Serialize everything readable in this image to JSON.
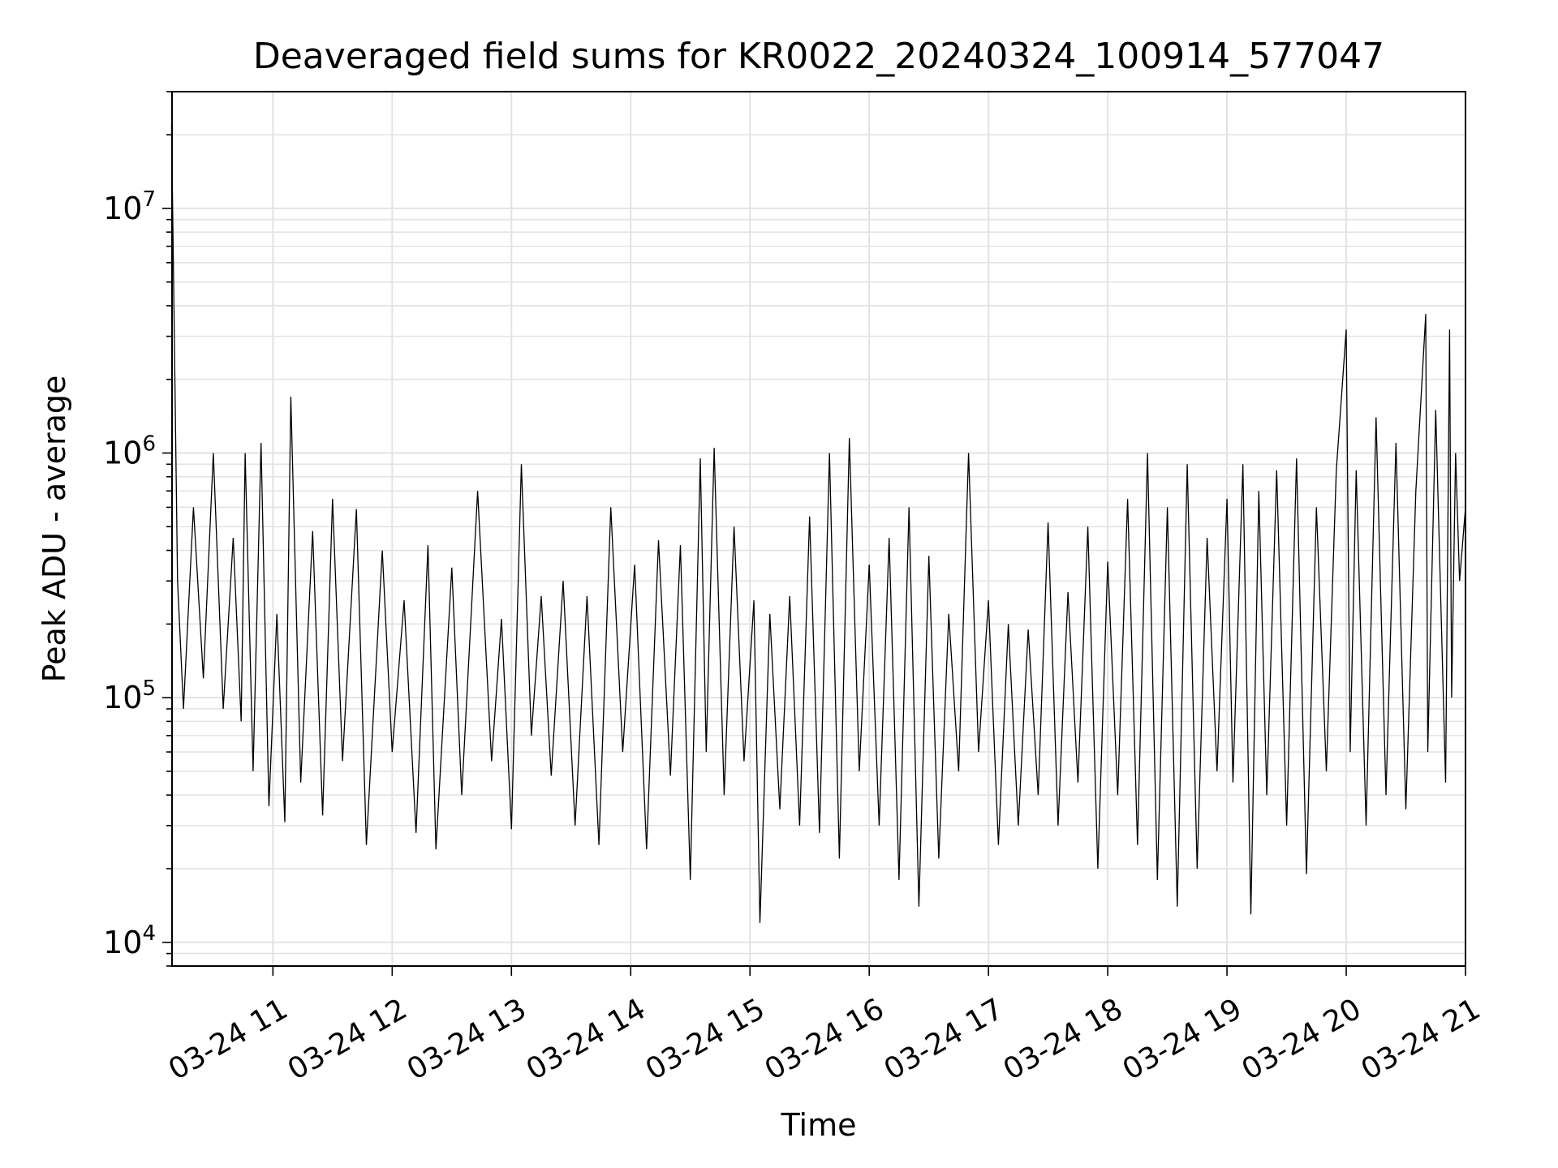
{
  "chart_data": {
    "type": "line",
    "title": "Deaveraged field sums for KR0022_20240324_100914_577047",
    "xlabel": "Time",
    "ylabel": "Peak ADU - average",
    "x_range": [
      "2024-03-24 10:09:14",
      "2024-03-24 21:00:00"
    ],
    "x_ticks": [
      {
        "label": "03-24 11",
        "time": "2024-03-24 11:00"
      },
      {
        "label": "03-24 12",
        "time": "2024-03-24 12:00"
      },
      {
        "label": "03-24 13",
        "time": "2024-03-24 13:00"
      },
      {
        "label": "03-24 14",
        "time": "2024-03-24 14:00"
      },
      {
        "label": "03-24 15",
        "time": "2024-03-24 15:00"
      },
      {
        "label": "03-24 16",
        "time": "2024-03-24 16:00"
      },
      {
        "label": "03-24 17",
        "time": "2024-03-24 17:00"
      },
      {
        "label": "03-24 18",
        "time": "2024-03-24 18:00"
      },
      {
        "label": "03-24 19",
        "time": "2024-03-24 19:00"
      },
      {
        "label": "03-24 20",
        "time": "2024-03-24 20:00"
      },
      {
        "label": "03-24 21",
        "time": "2024-03-24 21:00"
      }
    ],
    "y_scale": "log",
    "ylim": [
      8000,
      30000000
    ],
    "y_ticks": [
      {
        "base": "10",
        "exp": "4",
        "value": 10000
      },
      {
        "base": "10",
        "exp": "5",
        "value": 100000
      },
      {
        "base": "10",
        "exp": "6",
        "value": 1000000
      },
      {
        "base": "10",
        "exp": "7",
        "value": 10000000
      }
    ],
    "grid": true,
    "line_color": "#000000",
    "series": [
      {
        "points": [
          [
            "2024-03-24 10:09",
            22000000
          ],
          [
            "2024-03-24 10:12",
            300000
          ],
          [
            "2024-03-24 10:15",
            90000
          ],
          [
            "2024-03-24 10:20",
            600000
          ],
          [
            "2024-03-24 10:25",
            120000
          ],
          [
            "2024-03-24 10:30",
            1000000
          ],
          [
            "2024-03-24 10:35",
            90000
          ],
          [
            "2024-03-24 10:40",
            450000
          ],
          [
            "2024-03-24 10:44",
            80000
          ],
          [
            "2024-03-24 10:46",
            1000000
          ],
          [
            "2024-03-24 10:50",
            50000
          ],
          [
            "2024-03-24 10:54",
            1100000
          ],
          [
            "2024-03-24 10:58",
            36000
          ],
          [
            "2024-03-24 11:02",
            220000
          ],
          [
            "2024-03-24 11:06",
            31000
          ],
          [
            "2024-03-24 11:09",
            1700000
          ],
          [
            "2024-03-24 11:14",
            45000
          ],
          [
            "2024-03-24 11:20",
            480000
          ],
          [
            "2024-03-24 11:25",
            33000
          ],
          [
            "2024-03-24 11:30",
            650000
          ],
          [
            "2024-03-24 11:35",
            55000
          ],
          [
            "2024-03-24 11:42",
            590000
          ],
          [
            "2024-03-24 11:47",
            25000
          ],
          [
            "2024-03-24 11:55",
            400000
          ],
          [
            "2024-03-24 12:00",
            60000
          ],
          [
            "2024-03-24 12:06",
            250000
          ],
          [
            "2024-03-24 12:12",
            28000
          ],
          [
            "2024-03-24 12:18",
            420000
          ],
          [
            "2024-03-24 12:22",
            24000
          ],
          [
            "2024-03-24 12:30",
            340000
          ],
          [
            "2024-03-24 12:35",
            40000
          ],
          [
            "2024-03-24 12:43",
            700000
          ],
          [
            "2024-03-24 12:50",
            55000
          ],
          [
            "2024-03-24 12:55",
            210000
          ],
          [
            "2024-03-24 13:00",
            29000
          ],
          [
            "2024-03-24 13:05",
            900000
          ],
          [
            "2024-03-24 13:10",
            70000
          ],
          [
            "2024-03-24 13:15",
            260000
          ],
          [
            "2024-03-24 13:20",
            48000
          ],
          [
            "2024-03-24 13:26",
            300000
          ],
          [
            "2024-03-24 13:32",
            30000
          ],
          [
            "2024-03-24 13:38",
            260000
          ],
          [
            "2024-03-24 13:44",
            25000
          ],
          [
            "2024-03-24 13:50",
            600000
          ],
          [
            "2024-03-24 13:56",
            60000
          ],
          [
            "2024-03-24 14:02",
            350000
          ],
          [
            "2024-03-24 14:08",
            24000
          ],
          [
            "2024-03-24 14:14",
            440000
          ],
          [
            "2024-03-24 14:20",
            48000
          ],
          [
            "2024-03-24 14:25",
            420000
          ],
          [
            "2024-03-24 14:30",
            18000
          ],
          [
            "2024-03-24 14:35",
            950000
          ],
          [
            "2024-03-24 14:38",
            60000
          ],
          [
            "2024-03-24 14:42",
            1050000
          ],
          [
            "2024-03-24 14:47",
            40000
          ],
          [
            "2024-03-24 14:52",
            500000
          ],
          [
            "2024-03-24 14:57",
            55000
          ],
          [
            "2024-03-24 15:02",
            250000
          ],
          [
            "2024-03-24 15:05",
            12000
          ],
          [
            "2024-03-24 15:10",
            220000
          ],
          [
            "2024-03-24 15:15",
            35000
          ],
          [
            "2024-03-24 15:20",
            260000
          ],
          [
            "2024-03-24 15:25",
            30000
          ],
          [
            "2024-03-24 15:30",
            550000
          ],
          [
            "2024-03-24 15:35",
            28000
          ],
          [
            "2024-03-24 15:40",
            1000000
          ],
          [
            "2024-03-24 15:45",
            22000
          ],
          [
            "2024-03-24 15:50",
            1150000
          ],
          [
            "2024-03-24 15:55",
            50000
          ],
          [
            "2024-03-24 16:00",
            350000
          ],
          [
            "2024-03-24 16:05",
            30000
          ],
          [
            "2024-03-24 16:10",
            450000
          ],
          [
            "2024-03-24 16:15",
            18000
          ],
          [
            "2024-03-24 16:20",
            600000
          ],
          [
            "2024-03-24 16:25",
            14000
          ],
          [
            "2024-03-24 16:30",
            380000
          ],
          [
            "2024-03-24 16:35",
            22000
          ],
          [
            "2024-03-24 16:40",
            220000
          ],
          [
            "2024-03-24 16:45",
            50000
          ],
          [
            "2024-03-24 16:50",
            1000000
          ],
          [
            "2024-03-24 16:55",
            60000
          ],
          [
            "2024-03-24 17:00",
            250000
          ],
          [
            "2024-03-24 17:05",
            25000
          ],
          [
            "2024-03-24 17:10",
            200000
          ],
          [
            "2024-03-24 17:15",
            30000
          ],
          [
            "2024-03-24 17:20",
            190000
          ],
          [
            "2024-03-24 17:25",
            40000
          ],
          [
            "2024-03-24 17:30",
            520000
          ],
          [
            "2024-03-24 17:35",
            30000
          ],
          [
            "2024-03-24 17:40",
            270000
          ],
          [
            "2024-03-24 17:45",
            45000
          ],
          [
            "2024-03-24 17:50",
            500000
          ],
          [
            "2024-03-24 17:55",
            20000
          ],
          [
            "2024-03-24 18:00",
            360000
          ],
          [
            "2024-03-24 18:05",
            40000
          ],
          [
            "2024-03-24 18:10",
            650000
          ],
          [
            "2024-03-24 18:15",
            25000
          ],
          [
            "2024-03-24 18:20",
            1000000
          ],
          [
            "2024-03-24 18:25",
            18000
          ],
          [
            "2024-03-24 18:30",
            600000
          ],
          [
            "2024-03-24 18:35",
            14000
          ],
          [
            "2024-03-24 18:40",
            900000
          ],
          [
            "2024-03-24 18:45",
            20000
          ],
          [
            "2024-03-24 18:50",
            450000
          ],
          [
            "2024-03-24 18:55",
            50000
          ],
          [
            "2024-03-24 19:00",
            650000
          ],
          [
            "2024-03-24 19:03",
            45000
          ],
          [
            "2024-03-24 19:08",
            900000
          ],
          [
            "2024-03-24 19:12",
            13000
          ],
          [
            "2024-03-24 19:16",
            700000
          ],
          [
            "2024-03-24 19:20",
            40000
          ],
          [
            "2024-03-24 19:25",
            850000
          ],
          [
            "2024-03-24 19:30",
            30000
          ],
          [
            "2024-03-24 19:35",
            950000
          ],
          [
            "2024-03-24 19:40",
            19000
          ],
          [
            "2024-03-24 19:45",
            600000
          ],
          [
            "2024-03-24 19:50",
            50000
          ],
          [
            "2024-03-24 19:55",
            850000
          ],
          [
            "2024-03-24 20:00",
            3200000
          ],
          [
            "2024-03-24 20:02",
            60000
          ],
          [
            "2024-03-24 20:05",
            850000
          ],
          [
            "2024-03-24 20:10",
            30000
          ],
          [
            "2024-03-24 20:15",
            1400000
          ],
          [
            "2024-03-24 20:20",
            40000
          ],
          [
            "2024-03-24 20:25",
            1100000
          ],
          [
            "2024-03-24 20:30",
            35000
          ],
          [
            "2024-03-24 20:35",
            700000
          ],
          [
            "2024-03-24 20:40",
            3700000
          ],
          [
            "2024-03-24 20:41",
            60000
          ],
          [
            "2024-03-24 20:45",
            1500000
          ],
          [
            "2024-03-24 20:50",
            45000
          ],
          [
            "2024-03-24 20:52",
            3200000
          ],
          [
            "2024-03-24 20:53",
            100000
          ],
          [
            "2024-03-24 20:55",
            1000000
          ],
          [
            "2024-03-24 20:57",
            300000
          ],
          [
            "2024-03-24 21:00",
            600000
          ]
        ]
      }
    ]
  }
}
